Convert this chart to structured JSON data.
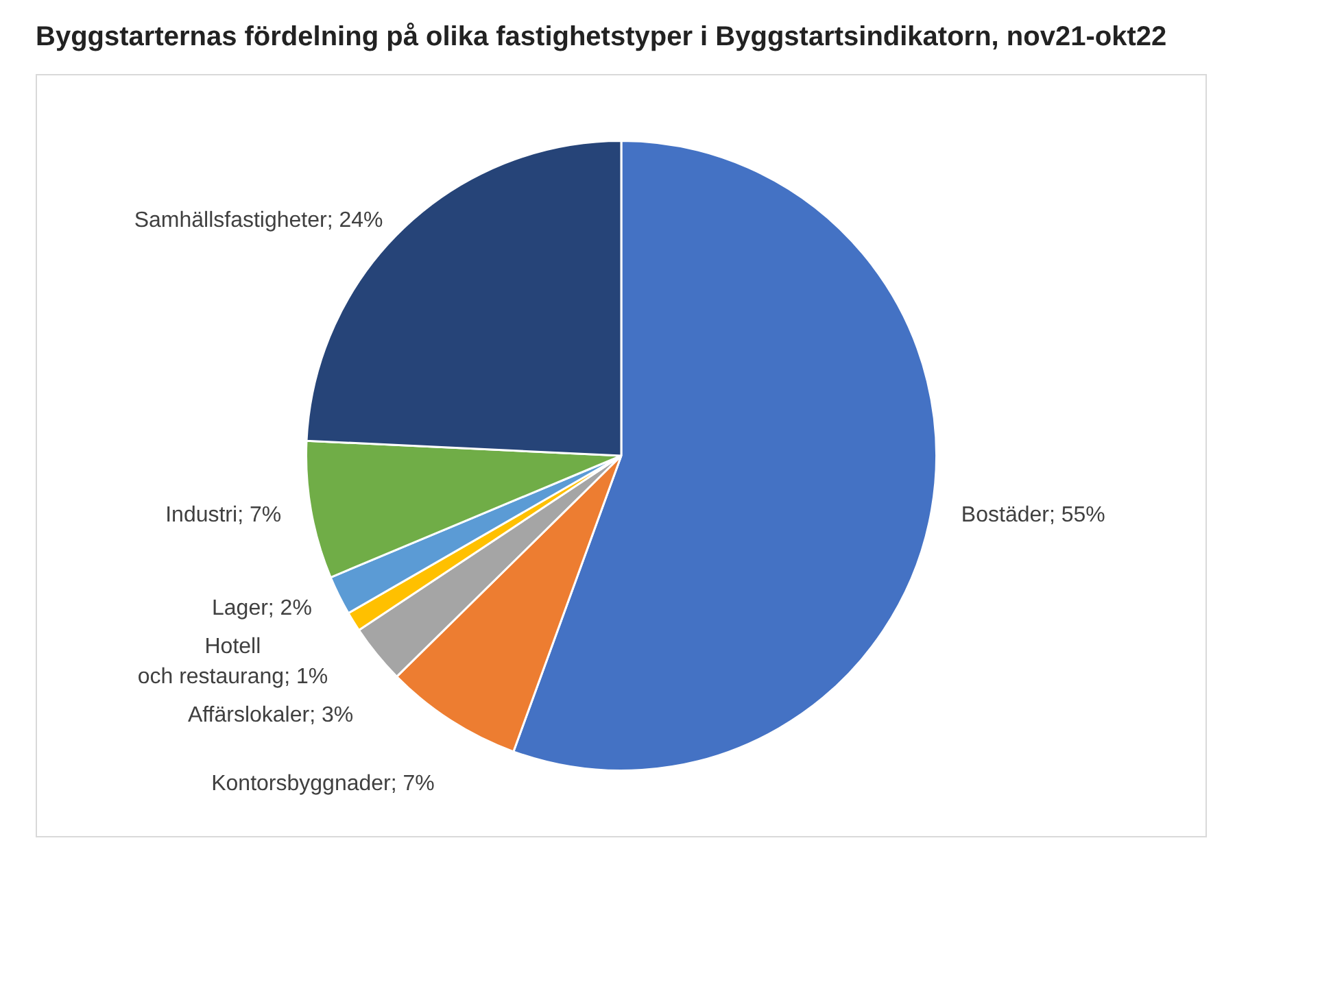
{
  "chart_data": {
    "type": "pie",
    "title": "Byggstarternas fördelning på olika fastighetstyper i Byggstartsindikatorn, nov21-okt22",
    "categories": [
      "Bostäder",
      "Kontorsbyggnader",
      "Affärslokaler",
      "Hotell och restaurang",
      "Lager",
      "Industri",
      "Samhällsfastigheter"
    ],
    "values": [
      55,
      7,
      3,
      1,
      2,
      7,
      24
    ],
    "value_labels": [
      "55%",
      "7%",
      "3%",
      "1%",
      "2%",
      "7%",
      "24%"
    ],
    "colors": [
      "#4472c4",
      "#ed7d31",
      "#a5a5a5",
      "#ffc000",
      "#5b9bd5",
      "#70ad47",
      "#264478"
    ],
    "legend": false
  }
}
